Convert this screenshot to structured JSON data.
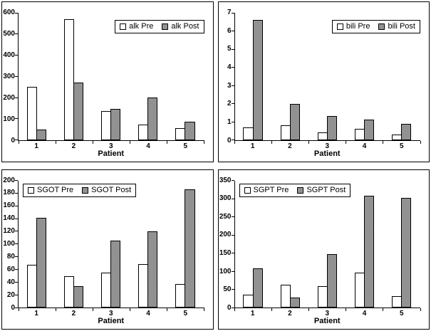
{
  "page": {
    "background": "#ffffff"
  },
  "colors": {
    "pre_fill": "#ffffff",
    "post_fill": "#9a9a9a",
    "bar_border": "#000000",
    "axis": "#000000",
    "panel_border": "#000000",
    "legend_background": "#ffffff",
    "text": "#000000"
  },
  "chart_data": [
    {
      "type": "bar",
      "name": "alk",
      "title": "",
      "categories": [
        "1",
        "2",
        "3",
        "4",
        "5"
      ],
      "xlabel": "Patient",
      "ylabel": "",
      "ylim": [
        0,
        600
      ],
      "ystep": 100,
      "grid": false,
      "legend_position": "top-right",
      "series": [
        {
          "name": "alk Pre",
          "style": "white",
          "values": [
            250,
            570,
            137,
            73,
            57
          ]
        },
        {
          "name": "alk Post",
          "style": "gray",
          "values": [
            50,
            270,
            147,
            200,
            87
          ]
        }
      ]
    },
    {
      "type": "bar",
      "name": "bili",
      "title": "",
      "categories": [
        "1",
        "2",
        "3",
        "4",
        "5"
      ],
      "xlabel": "Patient",
      "ylabel": "",
      "ylim": [
        0,
        7
      ],
      "ystep": 1,
      "grid": false,
      "legend_position": "top-right",
      "series": [
        {
          "name": "bili Pre",
          "style": "white",
          "values": [
            0.7,
            0.8,
            0.4,
            0.6,
            0.3
          ]
        },
        {
          "name": "bili Post",
          "style": "gray",
          "values": [
            6.6,
            2.0,
            1.3,
            1.1,
            0.9
          ]
        }
      ]
    },
    {
      "type": "bar",
      "name": "SGOT",
      "title": "",
      "categories": [
        "1",
        "2",
        "3",
        "4",
        "5"
      ],
      "xlabel": "Patient",
      "ylabel": "",
      "ylim": [
        0,
        200
      ],
      "ystep": 20,
      "grid": false,
      "legend_position": "top-left",
      "series": [
        {
          "name": "SGOT Pre",
          "style": "white",
          "values": [
            67,
            49,
            55,
            68,
            37
          ]
        },
        {
          "name": "SGOT Post",
          "style": "gray",
          "values": [
            141,
            34,
            105,
            120,
            186
          ]
        }
      ]
    },
    {
      "type": "bar",
      "name": "SGPT",
      "title": "",
      "categories": [
        "1",
        "2",
        "3",
        "4",
        "5"
      ],
      "xlabel": "Patient",
      "ylabel": "",
      "ylim": [
        0,
        350
      ],
      "ystep": 50,
      "grid": false,
      "legend_position": "top-left",
      "series": [
        {
          "name": "SGPT Pre",
          "style": "white",
          "values": [
            35,
            62,
            58,
            97,
            31
          ]
        },
        {
          "name": "SGPT Post",
          "style": "gray",
          "values": [
            108,
            27,
            147,
            308,
            302
          ]
        }
      ]
    }
  ]
}
